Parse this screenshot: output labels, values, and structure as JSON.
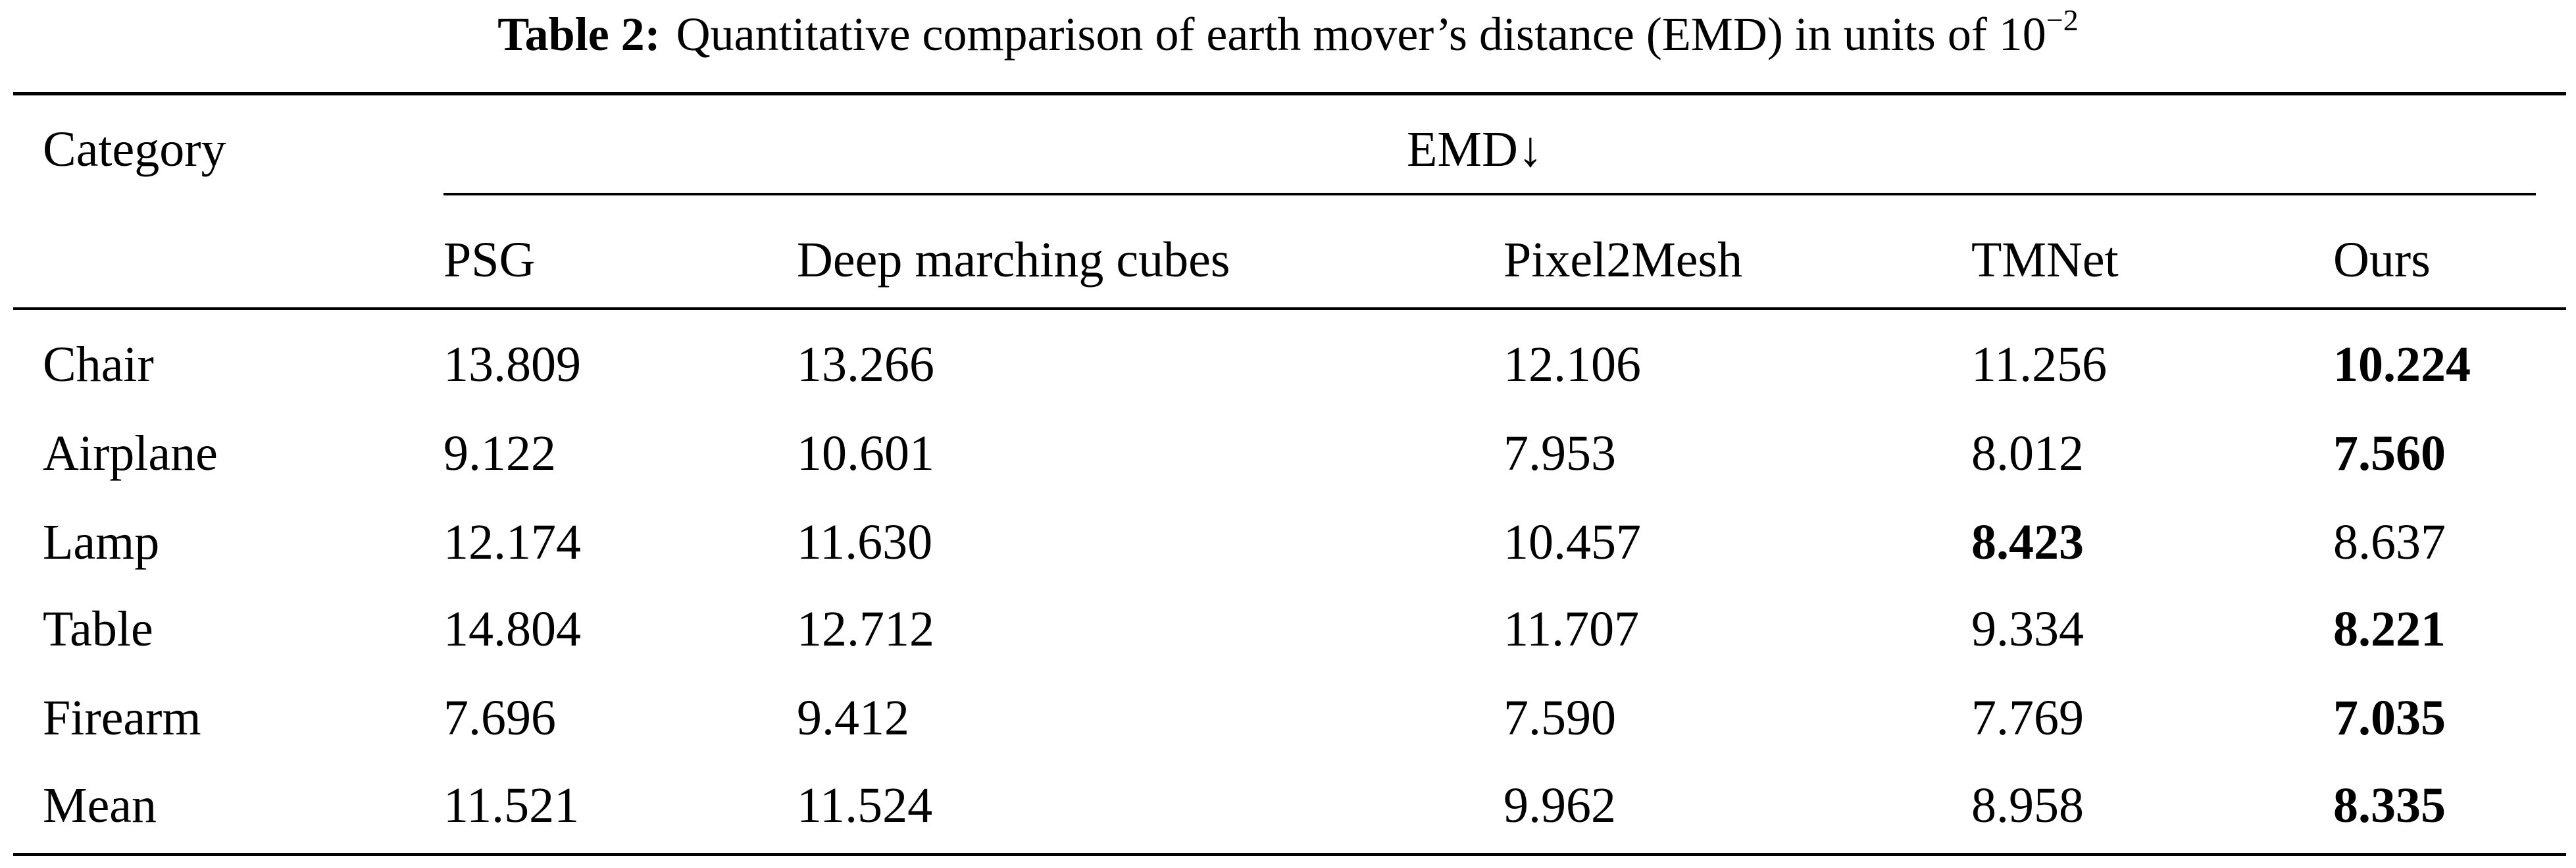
{
  "caption": {
    "label": "Table 2:",
    "text": "Quantitative comparison of earth mover’s distance (EMD) in units of 10",
    "exponent": "−2"
  },
  "table": {
    "row_header": "Category",
    "group_header": "EMD↓",
    "columns": [
      "PSG",
      "Deep marching cubes",
      "Pixel2Mesh",
      "TMNet",
      "Ours"
    ],
    "rows": [
      [
        "Chair",
        "13.809",
        "13.266",
        "12.106",
        "11.256",
        "10.224"
      ],
      [
        "Airplane",
        "9.122",
        "10.601",
        "7.953",
        "8.012",
        "7.560"
      ],
      [
        "Lamp",
        "12.174",
        "11.630",
        "10.457",
        "8.423",
        "8.637"
      ],
      [
        "Table",
        "14.804",
        "12.712",
        "11.707",
        "9.334",
        "8.221"
      ],
      [
        "Firearm",
        "7.696",
        "9.412",
        "7.590",
        "7.769",
        "7.035"
      ],
      [
        "Mean",
        "11.521",
        "11.524",
        "9.962",
        "8.958",
        "8.335"
      ]
    ],
    "bold_column": [
      5,
      5,
      4,
      5,
      5,
      5
    ]
  }
}
